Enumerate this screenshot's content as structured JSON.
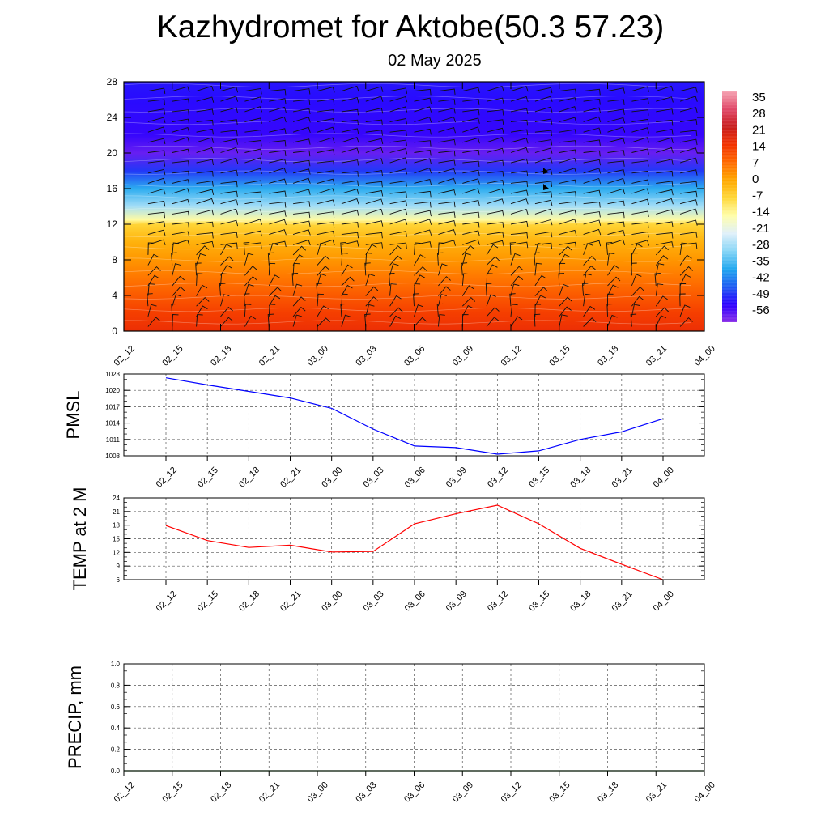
{
  "title": "Kazhydromet for Aktobe(50.3 57.23)",
  "subtitle": "02 May 2025",
  "time_labels": [
    "02_12",
    "02_15",
    "02_18",
    "02_21",
    "03_00",
    "03_03",
    "03_06",
    "03_09",
    "03_12",
    "03_15",
    "03_18",
    "03_21",
    "04_00"
  ],
  "chart_data": [
    {
      "type": "heatmap",
      "title": "",
      "ylabel": "",
      "x": [
        "02_12",
        "02_15",
        "02_18",
        "02_21",
        "03_00",
        "03_03",
        "03_06",
        "03_09",
        "03_12",
        "03_15",
        "03_18",
        "03_21",
        "04_00"
      ],
      "yticks": [
        0,
        4,
        8,
        12,
        16,
        20,
        24,
        28
      ],
      "ylim": [
        0,
        28
      ],
      "field_profile": [
        {
          "level": 0,
          "value": 19
        },
        {
          "level": 2,
          "value": 16
        },
        {
          "level": 4,
          "value": 12
        },
        {
          "level": 6,
          "value": 8
        },
        {
          "level": 8,
          "value": 4
        },
        {
          "level": 10,
          "value": 0
        },
        {
          "level": 12,
          "value": -6
        },
        {
          "level": 12.5,
          "value": -14
        },
        {
          "level": 14,
          "value": -28
        },
        {
          "level": 16,
          "value": -38
        },
        {
          "level": 18,
          "value": -50
        },
        {
          "level": 20,
          "value": -60
        },
        {
          "level": 22,
          "value": -56
        },
        {
          "level": 26,
          "value": -54
        },
        {
          "level": 28,
          "value": -53
        }
      ],
      "colorbar": {
        "labels": [
          "35",
          "28",
          "21",
          "14",
          "7",
          "0",
          "-7",
          "-14",
          "-21",
          "-28",
          "-35",
          "-42",
          "-49",
          "-56"
        ],
        "range": [
          -63,
          42
        ],
        "colors": [
          "#8b2fe8",
          "#2a00ff",
          "#1d5cf2",
          "#22a8ef",
          "#86d5f6",
          "#e0f0fa",
          "#fffeaa",
          "#ffd83a",
          "#ffa800",
          "#ff6a00",
          "#f23200",
          "#c81e1e",
          "#e04868",
          "#f5a0b0"
        ]
      },
      "wind_barbs": true
    },
    {
      "type": "line",
      "ylabel": "PMSL",
      "x": [
        "02_12",
        "02_15",
        "02_18",
        "02_21",
        "03_00",
        "03_03",
        "03_06",
        "03_09",
        "03_12",
        "03_15",
        "03_18",
        "03_21",
        "04_00"
      ],
      "series": [
        {
          "values": [
            1022.3,
            1021.0,
            1019.8,
            1018.6,
            1016.7,
            1012.9,
            1009.8,
            1009.5,
            1008.3,
            1008.9,
            1011.0,
            1012.4,
            1014.8
          ],
          "color": "#0000ff"
        }
      ],
      "yticks": [
        1008,
        1011,
        1014,
        1017,
        1020,
        1023
      ],
      "ylim": [
        1008,
        1023
      ],
      "grid": true
    },
    {
      "type": "line",
      "ylabel": "TEMP at 2 M",
      "x": [
        "02_12",
        "02_15",
        "02_18",
        "02_21",
        "03_00",
        "03_03",
        "03_06",
        "03_09",
        "03_12",
        "03_15",
        "03_18",
        "03_21",
        "04_00"
      ],
      "series": [
        {
          "values": [
            17.9,
            14.6,
            13.1,
            13.6,
            12.1,
            12.2,
            18.3,
            20.5,
            22.4,
            18.3,
            12.9,
            9.4,
            6.0
          ],
          "color": "#ff0000"
        }
      ],
      "yticks": [
        6,
        9,
        12,
        15,
        18,
        21,
        24
      ],
      "ylim": [
        6,
        24
      ],
      "grid": true
    },
    {
      "type": "line",
      "ylabel": "PRECIP, mm",
      "x": [
        "02_12",
        "02_15",
        "02_18",
        "02_21",
        "03_00",
        "03_03",
        "03_06",
        "03_09",
        "03_12",
        "03_15",
        "03_18",
        "03_21",
        "04_00"
      ],
      "series": [
        {
          "values": [
            0,
            0,
            0,
            0,
            0,
            0,
            0,
            0,
            0,
            0,
            0,
            0,
            0
          ],
          "color": "#006400"
        }
      ],
      "yticks": [
        "0.0",
        "0.2",
        "0.4",
        "0.6",
        "0.8",
        "1.0"
      ],
      "ylim": [
        0,
        1
      ],
      "grid": true
    }
  ]
}
